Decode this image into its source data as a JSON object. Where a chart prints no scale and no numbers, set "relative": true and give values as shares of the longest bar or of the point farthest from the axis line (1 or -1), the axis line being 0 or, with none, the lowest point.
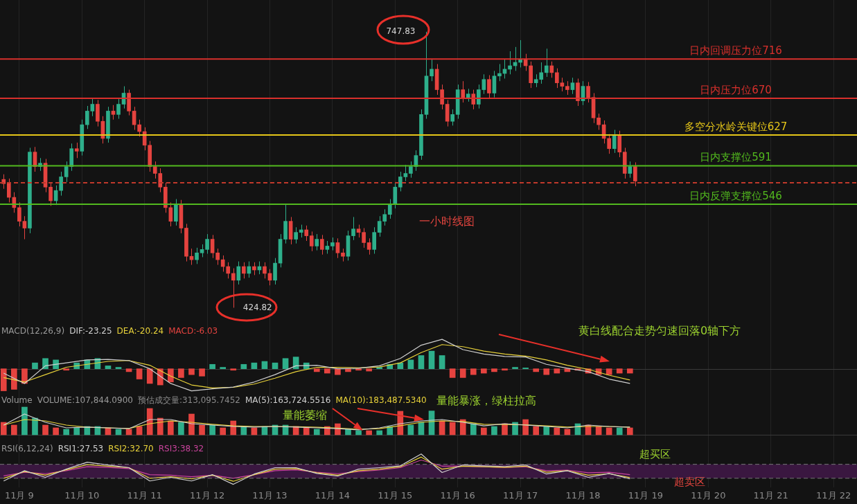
{
  "chart_data": [
    {
      "type": "candlestick",
      "xlim": [
        "--11-08T16:36",
        "--11-22T09:00"
      ],
      "xticks": [
        {
          "value": "--11-09",
          "label": "11月 9"
        },
        {
          "value": "--11-10",
          "label": "11月 10"
        },
        {
          "value": "--11-11",
          "label": "11月 11"
        },
        {
          "value": "--11-12",
          "label": "11月 12"
        },
        {
          "value": "--11-13",
          "label": "11月 13"
        },
        {
          "value": "--11-14",
          "label": "11月 14"
        },
        {
          "value": "--11-15",
          "label": "11月 15"
        },
        {
          "value": "--11-16",
          "label": "11月 16"
        },
        {
          "value": "--11-17",
          "label": "11月 17"
        },
        {
          "value": "--11-18",
          "label": "11月 18"
        },
        {
          "value": "--11-19",
          "label": "11月 19"
        },
        {
          "value": "--11-20",
          "label": "11月 20"
        },
        {
          "value": "--11-21",
          "label": "11月 21"
        },
        {
          "value": "--11-22",
          "label": "11月 22"
        }
      ],
      "tick_labels": false,
      "grid": "x",
      "x": [
        "--11-08T18:00",
        "--11-08T20:00",
        "--11-08T22:00",
        "--11-09T00:00",
        "--11-09T02:00",
        "--11-09T04:00",
        "--11-09T06:00",
        "--11-09T08:00",
        "--11-09T10:00",
        "--11-09T12:00",
        "--11-09T14:00",
        "--11-09T16:00",
        "--11-09T18:00",
        "--11-09T20:00",
        "--11-09T22:00",
        "--11-10T00:00",
        "--11-10T02:00",
        "--11-10T04:00",
        "--11-10T06:00",
        "--11-10T08:00",
        "--11-10T10:00",
        "--11-10T12:00",
        "--11-10T14:00",
        "--11-10T16:00",
        "--11-10T18:00",
        "--11-10T20:00",
        "--11-10T22:00",
        "--11-11T00:00",
        "--11-11T02:00",
        "--11-11T04:00",
        "--11-11T06:00",
        "--11-11T08:00",
        "--11-11T10:00",
        "--11-11T12:00",
        "--11-11T14:00",
        "--11-11T16:00",
        "--11-11T18:00",
        "--11-11T20:00",
        "--11-11T22:00",
        "--11-12T00:00",
        "--11-12T02:00",
        "--11-12T04:00",
        "--11-12T06:00",
        "--11-12T08:00",
        "--11-12T10:00",
        "--11-12T12:00",
        "--11-12T14:00",
        "--11-12T16:00",
        "--11-12T18:00",
        "--11-12T20:00",
        "--11-12T22:00",
        "--11-13T00:00",
        "--11-13T02:00",
        "--11-13T04:00",
        "--11-13T06:00",
        "--11-13T08:00",
        "--11-13T10:00",
        "--11-13T12:00",
        "--11-13T14:00",
        "--11-13T16:00",
        "--11-13T18:00",
        "--11-13T20:00",
        "--11-13T22:00",
        "--11-14T00:00",
        "--11-14T02:00",
        "--11-14T04:00",
        "--11-14T06:00",
        "--11-14T08:00",
        "--11-14T10:00",
        "--11-14T12:00",
        "--11-14T14:00",
        "--11-14T16:00",
        "--11-14T18:00",
        "--11-14T20:00",
        "--11-14T22:00",
        "--11-15T00:00",
        "--11-15T02:00",
        "--11-15T04:00",
        "--11-15T06:00",
        "--11-15T08:00",
        "--11-15T10:00",
        "--11-15T12:00",
        "--11-15T14:00",
        "--11-15T16:00",
        "--11-15T18:00",
        "--11-15T20:00",
        "--11-15T22:00",
        "--11-16T00:00",
        "--11-16T02:00",
        "--11-16T04:00",
        "--11-16T06:00",
        "--11-16T08:00",
        "--11-16T10:00",
        "--11-16T12:00",
        "--11-16T14:00",
        "--11-16T16:00",
        "--11-16T18:00",
        "--11-16T20:00",
        "--11-16T22:00",
        "--11-17T00:00",
        "--11-17T02:00",
        "--11-17T04:00",
        "--11-17T06:00",
        "--11-17T08:00",
        "--11-17T10:00",
        "--11-17T12:00",
        "--11-17T14:00",
        "--11-17T16:00",
        "--11-17T18:00",
        "--11-17T20:00",
        "--11-17T22:00",
        "--11-18T00:00",
        "--11-18T02:00",
        "--11-18T04:00",
        "--11-18T06:00",
        "--11-18T08:00",
        "--11-18T10:00",
        "--11-18T12:00",
        "--11-18T14:00",
        "--11-18T16:00",
        "--11-18T18:00",
        "--11-18T20:00"
      ],
      "ohlc": [
        [
          575,
          581,
          564,
          570
        ],
        [
          570,
          576,
          548,
          554
        ],
        [
          554,
          560,
          536,
          542
        ],
        [
          542,
          548,
          520,
          526
        ],
        [
          526,
          532,
          505,
          518
        ],
        [
          518,
          612,
          512,
          607
        ],
        [
          607,
          613,
          584,
          590
        ],
        [
          590,
          600,
          585,
          594
        ],
        [
          594,
          599,
          560,
          566
        ],
        [
          566,
          571,
          544,
          550
        ],
        [
          550,
          568,
          545,
          562
        ],
        [
          562,
          584,
          556,
          578
        ],
        [
          578,
          596,
          572,
          590
        ],
        [
          590,
          617,
          585,
          611
        ],
        [
          611,
          618,
          600,
          608
        ],
        [
          608,
          645,
          603,
          639
        ],
        [
          639,
          661,
          634,
          655
        ],
        [
          655,
          670,
          649,
          663
        ],
        [
          663,
          668,
          637,
          643
        ],
        [
          643,
          649,
          617,
          623
        ],
        [
          623,
          660,
          618,
          655
        ],
        [
          655,
          662,
          645,
          651
        ],
        [
          651,
          669,
          646,
          663
        ],
        [
          663,
          684,
          658,
          676
        ],
        [
          676,
          680,
          650,
          655
        ],
        [
          655,
          660,
          633,
          639
        ],
        [
          639,
          645,
          625,
          631
        ],
        [
          631,
          636,
          609,
          615
        ],
        [
          615,
          620,
          584,
          590
        ],
        [
          590,
          596,
          576,
          582
        ],
        [
          582,
          588,
          560,
          566
        ],
        [
          566,
          571,
          536,
          542
        ],
        [
          542,
          548,
          520,
          526
        ],
        [
          526,
          552,
          521,
          546
        ],
        [
          546,
          551,
          512,
          518
        ],
        [
          518,
          523,
          479,
          485
        ],
        [
          485,
          494,
          475,
          481
        ],
        [
          481,
          495,
          476,
          489
        ],
        [
          489,
          499,
          484,
          493
        ],
        [
          493,
          511,
          488,
          505
        ],
        [
          505,
          510,
          483,
          489
        ],
        [
          489,
          494,
          475,
          481
        ],
        [
          481,
          486,
          467,
          473
        ],
        [
          473,
          478,
          459,
          465
        ],
        [
          465,
          471,
          424.82,
          457
        ],
        [
          457,
          479,
          452,
          473
        ],
        [
          473,
          478,
          459,
          465
        ],
        [
          465,
          479,
          460,
          473
        ],
        [
          473,
          478,
          463,
          469
        ],
        [
          469,
          479,
          464,
          473
        ],
        [
          473,
          478,
          459,
          465
        ],
        [
          465,
          470,
          451,
          457
        ],
        [
          457,
          483,
          452,
          477
        ],
        [
          477,
          511,
          472,
          505
        ],
        [
          505,
          546,
          500,
          526
        ],
        [
          526,
          531,
          499,
          505
        ],
        [
          505,
          519,
          500,
          513
        ],
        [
          513,
          522,
          507,
          516
        ],
        [
          516,
          521,
          503,
          509
        ],
        [
          509,
          514,
          491,
          497
        ],
        [
          497,
          511,
          492,
          505
        ],
        [
          505,
          510,
          487,
          493
        ],
        [
          493,
          503,
          488,
          497
        ],
        [
          497,
          507,
          492,
          501
        ],
        [
          501,
          506,
          483,
          489
        ],
        [
          489,
          494,
          479,
          485
        ],
        [
          485,
          515,
          480,
          509
        ],
        [
          509,
          531,
          504,
          517
        ],
        [
          517,
          522,
          507,
          513
        ],
        [
          513,
          518,
          495,
          501
        ],
        [
          501,
          506,
          487,
          493
        ],
        [
          493,
          519,
          488,
          513
        ],
        [
          513,
          532,
          508,
          526
        ],
        [
          526,
          540,
          521,
          534
        ],
        [
          534,
          552,
          529,
          546
        ],
        [
          546,
          572,
          541,
          566
        ],
        [
          566,
          584,
          561,
          578
        ],
        [
          578,
          592,
          573,
          582
        ],
        [
          582,
          596,
          577,
          590
        ],
        [
          590,
          609,
          585,
          603
        ],
        [
          603,
          657,
          598,
          651
        ],
        [
          651,
          747.83,
          646,
          696
        ],
        [
          696,
          716,
          690,
          704
        ],
        [
          704,
          710,
          674,
          680
        ],
        [
          680,
          686,
          657,
          663
        ],
        [
          663,
          668,
          637,
          643
        ],
        [
          643,
          657,
          638,
          651
        ],
        [
          651,
          686,
          646,
          680
        ],
        [
          680,
          690,
          665,
          671
        ],
        [
          671,
          681,
          666,
          675
        ],
        [
          675,
          680,
          657,
          663
        ],
        [
          663,
          686,
          658,
          680
        ],
        [
          680,
          698,
          675,
          692
        ],
        [
          692,
          697,
          670,
          676
        ],
        [
          676,
          702,
          671,
          696
        ],
        [
          696,
          710,
          690,
          699
        ],
        [
          699,
          716,
          693,
          704
        ],
        [
          704,
          725,
          698,
          708
        ],
        [
          708,
          730,
          702,
          712
        ],
        [
          712,
          738,
          706,
          716
        ],
        [
          716,
          722,
          702,
          708
        ],
        [
          708,
          713,
          682,
          688
        ],
        [
          688,
          698,
          683,
          692
        ],
        [
          692,
          712,
          687,
          700
        ],
        [
          700,
          728,
          695,
          708
        ],
        [
          708,
          713,
          694,
          700
        ],
        [
          700,
          705,
          682,
          688
        ],
        [
          688,
          694,
          678,
          684
        ],
        [
          684,
          690,
          674,
          680
        ],
        [
          680,
          694,
          675,
          688
        ],
        [
          688,
          693,
          661,
          667
        ],
        [
          667,
          690,
          662,
          684
        ],
        [
          684,
          689,
          665,
          671
        ],
        [
          671,
          676,
          641,
          647
        ],
        [
          647,
          652,
          633,
          639
        ],
        [
          639,
          644,
          617,
          623
        ],
        [
          623,
          628,
          605,
          611
        ],
        [
          611,
          633,
          606,
          627
        ],
        [
          627,
          632,
          601,
          607
        ],
        [
          607,
          612,
          576,
          582
        ],
        [
          582,
          596,
          577,
          590
        ],
        [
          590,
          595,
          567,
          573
        ]
      ],
      "ref_lines": [
        {
          "axis": "y",
          "value": 716,
          "label": "日内回调压力位716",
          "color": "#d9302c"
        },
        {
          "axis": "y",
          "value": 670,
          "label": "日内压力位670",
          "color": "#d9302c"
        },
        {
          "axis": "y",
          "value": 627,
          "label": "多空分水岭关键位627",
          "color": "#e6c619"
        },
        {
          "axis": "y",
          "value": 591,
          "label": "日内支撑位591",
          "color": "#52b91e"
        },
        {
          "axis": "y",
          "value": 546,
          "label": "日内反弹支撑位546",
          "color": "#52b91e"
        },
        {
          "axis": "y",
          "value": 571,
          "color": "#c0392b",
          "line_style": "dashed"
        }
      ],
      "annotations": [
        {
          "text": "747.83",
          "x": "--11-15T12:00",
          "y": 747.83
        },
        {
          "text": "424.82",
          "x": "--11-12T10:00",
          "y": 424.82
        },
        "一小时线图"
      ]
    },
    {
      "type": "bar",
      "title": "MACD(12,26,9)",
      "relative": true,
      "legend": "top left",
      "xlim": [
        "--11-08T16:36",
        "--11-22T09:00"
      ],
      "xticks": [
        {
          "value": "--11-09",
          "label": "11月 9"
        },
        {
          "value": "--11-10",
          "label": "11月 10"
        },
        {
          "value": "--11-11",
          "label": "11月 11"
        },
        {
          "value": "--11-12",
          "label": "11月 12"
        },
        {
          "value": "--11-13",
          "label": "11月 13"
        },
        {
          "value": "--11-14",
          "label": "11月 14"
        },
        {
          "value": "--11-15",
          "label": "11月 15"
        },
        {
          "value": "--11-16",
          "label": "11月 16"
        },
        {
          "value": "--11-17",
          "label": "11月 17"
        },
        {
          "value": "--11-18",
          "label": "11月 18"
        },
        {
          "value": "--11-19",
          "label": "11月 19"
        },
        {
          "value": "--11-20",
          "label": "11月 20"
        },
        {
          "value": "--11-21",
          "label": "11月 21"
        },
        {
          "value": "--11-22",
          "label": "11月 22"
        }
      ],
      "tick_labels": false,
      "grid": "x",
      "x": [
        "--11-08T18:00",
        "--11-08T22:00",
        "--11-09T02:00",
        "--11-09T06:00",
        "--11-09T10:00",
        "--11-09T14:00",
        "--11-09T18:00",
        "--11-09T22:00",
        "--11-10T02:00",
        "--11-10T06:00",
        "--11-10T10:00",
        "--11-10T14:00",
        "--11-10T18:00",
        "--11-10T22:00",
        "--11-11T02:00",
        "--11-11T06:00",
        "--11-11T10:00",
        "--11-11T14:00",
        "--11-11T18:00",
        "--11-11T22:00",
        "--11-12T02:00",
        "--11-12T06:00",
        "--11-12T10:00",
        "--11-12T14:00",
        "--11-12T18:00",
        "--11-12T22:00",
        "--11-13T02:00",
        "--11-13T06:00",
        "--11-13T10:00",
        "--11-13T14:00",
        "--11-13T18:00",
        "--11-13T22:00",
        "--11-14T02:00",
        "--11-14T06:00",
        "--11-14T10:00",
        "--11-14T14:00",
        "--11-14T18:00",
        "--11-14T22:00",
        "--11-15T02:00",
        "--11-15T06:00",
        "--11-15T10:00",
        "--11-15T14:00",
        "--11-15T18:00",
        "--11-15T22:00",
        "--11-16T02:00",
        "--11-16T06:00",
        "--11-16T10:00",
        "--11-16T14:00",
        "--11-16T18:00",
        "--11-16T22:00",
        "--11-17T02:00",
        "--11-17T06:00",
        "--11-17T10:00",
        "--11-17T14:00",
        "--11-17T18:00",
        "--11-17T22:00",
        "--11-18T02:00",
        "--11-18T06:00",
        "--11-18T10:00",
        "--11-18T14:00",
        "--11-18T18:00"
      ],
      "series": [
        {
          "name": "DIF:-23.25",
          "type": "line",
          "color": "#d0d0d0",
          "x": [
            "--11-08T18:00",
            "--11-09T02:00",
            "--11-09T10:00",
            "--11-09T18:00",
            "--11-10T02:00",
            "--11-10T10:00",
            "--11-10T18:00",
            "--11-11T02:00",
            "--11-11T10:00",
            "--11-11T18:00",
            "--11-12T02:00",
            "--11-12T10:00",
            "--11-12T18:00",
            "--11-13T02:00",
            "--11-13T10:00",
            "--11-13T18:00",
            "--11-14T02:00",
            "--11-14T10:00",
            "--11-14T18:00",
            "--11-15T02:00",
            "--11-15T10:00",
            "--11-15T18:00",
            "--11-16T02:00",
            "--11-16T10:00",
            "--11-16T18:00",
            "--11-17T02:00",
            "--11-17T10:00",
            "--11-17T18:00",
            "--11-18T02:00",
            "--11-18T10:00",
            "--11-18T18:00"
          ],
          "values": [
            -0.15,
            -0.5,
            0.1,
            0.2,
            0.3,
            0.32,
            0.28,
            0,
            -0.5,
            -0.75,
            -0.68,
            -0.62,
            -0.45,
            -0.2,
            0.1,
            0.12,
            0,
            0.02,
            0.1,
            0.35,
            0.8,
            1.0,
            0.65,
            0.5,
            0.42,
            0.4,
            0.15,
            0.02,
            -0.1,
            -0.35,
            -0.5
          ]
        },
        {
          "name": "DEA:-20.24",
          "type": "line",
          "color": "#e8d23a",
          "x": [
            "--11-08T18:00",
            "--11-09T02:00",
            "--11-09T10:00",
            "--11-09T18:00",
            "--11-10T02:00",
            "--11-10T10:00",
            "--11-10T18:00",
            "--11-11T02:00",
            "--11-11T10:00",
            "--11-11T18:00",
            "--11-12T02:00",
            "--11-12T10:00",
            "--11-12T18:00",
            "--11-13T02:00",
            "--11-13T10:00",
            "--11-13T18:00",
            "--11-14T02:00",
            "--11-14T10:00",
            "--11-14T18:00",
            "--11-15T02:00",
            "--11-15T10:00",
            "--11-15T18:00",
            "--11-16T02:00",
            "--11-16T10:00",
            "--11-16T18:00",
            "--11-17T02:00",
            "--11-17T10:00",
            "--11-17T18:00",
            "--11-18T02:00",
            "--11-18T10:00",
            "--11-18T18:00"
          ],
          "values": [
            -0.3,
            -0.45,
            -0.2,
            0.05,
            0.15,
            0.25,
            0.28,
            0.12,
            -0.25,
            -0.55,
            -0.65,
            -0.63,
            -0.52,
            -0.32,
            -0.1,
            0.05,
            0.05,
            0.03,
            0.06,
            0.2,
            0.55,
            0.82,
            0.75,
            0.6,
            0.5,
            0.43,
            0.3,
            0.12,
            -0.02,
            -0.22,
            -0.38
          ]
        },
        {
          "name": "MACD:-6.03",
          "type": "bar",
          "values": [
            -0.75,
            -0.7,
            -0.5,
            0.2,
            0.35,
            0.3,
            -0.05,
            0.2,
            0.3,
            0.35,
            0.1,
            0.05,
            -0.1,
            -0.35,
            -0.5,
            -0.55,
            -0.45,
            -0.3,
            -0.2,
            -0.25,
            0.15,
            0.05,
            -0.05,
            0.15,
            0.2,
            0.25,
            0.2,
            0.35,
            0.4,
            0.2,
            -0.1,
            -0.15,
            -0.2,
            -0.1,
            -0.05,
            -0.08,
            0.05,
            0.15,
            0.2,
            0.3,
            0.45,
            0.6,
            0.45,
            -0.3,
            -0.3,
            -0.2,
            -0.15,
            -0.1,
            -0.05,
            0.05,
            0.03,
            -0.1,
            -0.2,
            -0.15,
            -0.1,
            -0.05,
            -0.15,
            -0.2,
            -0.2,
            -0.15,
            -0.15
          ],
          "colors": [
            "#e5433f",
            "#e5433f",
            "#e5433f",
            "#2eaf8b",
            "#2eaf8b",
            "#2eaf8b",
            "#e5433f",
            "#2eaf8b",
            "#2eaf8b",
            "#2eaf8b",
            "#2eaf8b",
            "#2eaf8b",
            "#e5433f",
            "#e5433f",
            "#e5433f",
            "#e5433f",
            "#e5433f",
            "#e5433f",
            "#e5433f",
            "#e5433f",
            "#2eaf8b",
            "#2eaf8b",
            "#e5433f",
            "#2eaf8b",
            "#2eaf8b",
            "#2eaf8b",
            "#2eaf8b",
            "#2eaf8b",
            "#2eaf8b",
            "#2eaf8b",
            "#e5433f",
            "#e5433f",
            "#e5433f",
            "#e5433f",
            "#e5433f",
            "#e5433f",
            "#2eaf8b",
            "#2eaf8b",
            "#2eaf8b",
            "#2eaf8b",
            "#2eaf8b",
            "#2eaf8b",
            "#2eaf8b",
            "#e5433f",
            "#e5433f",
            "#e5433f",
            "#e5433f",
            "#e5433f",
            "#e5433f",
            "#2eaf8b",
            "#2eaf8b",
            "#e5433f",
            "#e5433f",
            "#e5433f",
            "#e5433f",
            "#e5433f",
            "#e5433f",
            "#e5433f",
            "#e5433f",
            "#e5433f",
            "#e5433f"
          ]
        }
      ],
      "annotations": [
        "黄白线配合走势匀速回落0轴下方"
      ]
    },
    {
      "type": "bar",
      "title": "Volume",
      "relative": true,
      "legend": "top left",
      "xlim": [
        "--11-08T16:36",
        "--11-22T09:00"
      ],
      "xticks": [
        {
          "value": "--11-09",
          "label": "11月 9"
        },
        {
          "value": "--11-10",
          "label": "11月 10"
        },
        {
          "value": "--11-11",
          "label": "11月 11"
        },
        {
          "value": "--11-12",
          "label": "11月 12"
        },
        {
          "value": "--11-13",
          "label": "11月 13"
        },
        {
          "value": "--11-14",
          "label": "11月 14"
        },
        {
          "value": "--11-15",
          "label": "11月 15"
        },
        {
          "value": "--11-16",
          "label": "11月 16"
        },
        {
          "value": "--11-17",
          "label": "11月 17"
        },
        {
          "value": "--11-18",
          "label": "11月 18"
        },
        {
          "value": "--11-19",
          "label": "11月 19"
        },
        {
          "value": "--11-20",
          "label": "11月 20"
        },
        {
          "value": "--11-21",
          "label": "11月 21"
        },
        {
          "value": "--11-22",
          "label": "11月 22"
        }
      ],
      "tick_labels": false,
      "grid": "x",
      "x": [
        "--11-08T18:00",
        "--11-08T22:00",
        "--11-09T02:00",
        "--11-09T06:00",
        "--11-09T10:00",
        "--11-09T14:00",
        "--11-09T18:00",
        "--11-09T22:00",
        "--11-10T02:00",
        "--11-10T06:00",
        "--11-10T10:00",
        "--11-10T14:00",
        "--11-10T18:00",
        "--11-10T22:00",
        "--11-11T02:00",
        "--11-11T06:00",
        "--11-11T10:00",
        "--11-11T14:00",
        "--11-11T18:00",
        "--11-11T22:00",
        "--11-12T02:00",
        "--11-12T06:00",
        "--11-12T10:00",
        "--11-12T14:00",
        "--11-12T18:00",
        "--11-12T22:00",
        "--11-13T02:00",
        "--11-13T06:00",
        "--11-13T10:00",
        "--11-13T14:00",
        "--11-13T18:00",
        "--11-13T22:00",
        "--11-14T02:00",
        "--11-14T06:00",
        "--11-14T10:00",
        "--11-14T14:00",
        "--11-14T18:00",
        "--11-14T22:00",
        "--11-15T02:00",
        "--11-15T06:00",
        "--11-15T10:00",
        "--11-15T14:00",
        "--11-15T18:00",
        "--11-15T22:00",
        "--11-16T02:00",
        "--11-16T06:00",
        "--11-16T10:00",
        "--11-16T14:00",
        "--11-16T18:00",
        "--11-16T22:00",
        "--11-17T02:00",
        "--11-17T06:00",
        "--11-17T10:00",
        "--11-17T14:00",
        "--11-17T18:00",
        "--11-17T22:00",
        "--11-18T02:00",
        "--11-18T06:00",
        "--11-18T10:00",
        "--11-18T14:00",
        "--11-18T18:00"
      ],
      "series": [
        {
          "name": "VOLUME:107,844.0900",
          "type": "bar",
          "values": [
            0.45,
            0.35,
            1.0,
            0.6,
            0.35,
            0.25,
            0.2,
            0.25,
            0.3,
            0.3,
            0.25,
            0.2,
            0.2,
            0.3,
            0.95,
            0.6,
            0.5,
            0.45,
            0.75,
            0.35,
            0.35,
            0.25,
            0.5,
            0.3,
            0.25,
            0.3,
            0.35,
            0.35,
            0.3,
            0.25,
            0.2,
            0.3,
            0.4,
            0.2,
            0.15,
            0.15,
            0.15,
            0.3,
            0.85,
            0.35,
            0.45,
            0.86,
            0.5,
            0.45,
            0.55,
            0.4,
            0.25,
            0.3,
            0.4,
            0.45,
            0.55,
            0.3,
            0.3,
            0.25,
            0.2,
            0.4,
            0.35,
            0.3,
            0.25,
            0.25,
            0.25
          ],
          "colors": [
            "#e5433f",
            "#e5433f",
            "#2eaf8b",
            "#2eaf8b",
            "#e5433f",
            "#e5433f",
            "#2eaf8b",
            "#2eaf8b",
            "#2eaf8b",
            "#2eaf8b",
            "#e5433f",
            "#2eaf8b",
            "#e5433f",
            "#e5433f",
            "#e5433f",
            "#e5433f",
            "#e5433f",
            "#2eaf8b",
            "#e5433f",
            "#e5433f",
            "#2eaf8b",
            "#e5433f",
            "#e5433f",
            "#2eaf8b",
            "#e5433f",
            "#2eaf8b",
            "#2eaf8b",
            "#2eaf8b",
            "#e5433f",
            "#e5433f",
            "#2eaf8b",
            "#e5433f",
            "#e5433f",
            "#2eaf8b",
            "#2eaf8b",
            "#e5433f",
            "#2eaf8b",
            "#2eaf8b",
            "#e5433f",
            "#2eaf8b",
            "#2eaf8b",
            "#2eaf8b",
            "#e5433f",
            "#e5433f",
            "#e5433f",
            "#2eaf8b",
            "#e5433f",
            "#2eaf8b",
            "#e5433f",
            "#2eaf8b",
            "#e5433f",
            "#e5433f",
            "#2eaf8b",
            "#e5433f",
            "#e5433f",
            "#2eaf8b",
            "#e5433f",
            "#e5433f",
            "#e5433f",
            "#2eaf8b",
            "#e5433f"
          ]
        },
        {
          "name": "MA(5):163,724.5516",
          "type": "line",
          "color": "#d0d0d0",
          "x": [
            "--11-08T18:00",
            "--11-09T02:00",
            "--11-09T10:00",
            "--11-09T18:00",
            "--11-10T02:00",
            "--11-10T10:00",
            "--11-10T18:00",
            "--11-11T02:00",
            "--11-11T10:00",
            "--11-11T18:00",
            "--11-12T02:00",
            "--11-12T10:00",
            "--11-12T18:00",
            "--11-13T02:00",
            "--11-13T10:00",
            "--11-13T18:00",
            "--11-14T02:00",
            "--11-14T10:00",
            "--11-14T18:00",
            "--11-15T02:00",
            "--11-15T10:00",
            "--11-15T18:00",
            "--11-16T02:00",
            "--11-16T10:00",
            "--11-16T18:00",
            "--11-17T02:00",
            "--11-17T10:00",
            "--11-17T18:00",
            "--11-18T02:00",
            "--11-18T10:00",
            "--11-18T18:00"
          ],
          "values": [
            0.35,
            0.75,
            0.45,
            0.25,
            0.28,
            0.25,
            0.22,
            0.55,
            0.55,
            0.4,
            0.35,
            0.3,
            0.28,
            0.3,
            0.28,
            0.25,
            0.22,
            0.18,
            0.25,
            0.4,
            0.5,
            0.55,
            0.45,
            0.32,
            0.4,
            0.35,
            0.3,
            0.25,
            0.35,
            0.3,
            0.27
          ]
        },
        {
          "name": "MA(10):183,487.5340",
          "type": "line",
          "color": "#e8d23a",
          "x": [
            "--11-08T18:00",
            "--11-09T02:00",
            "--11-09T10:00",
            "--11-09T18:00",
            "--11-10T02:00",
            "--11-10T10:00",
            "--11-10T18:00",
            "--11-11T02:00",
            "--11-11T10:00",
            "--11-11T18:00",
            "--11-12T02:00",
            "--11-12T10:00",
            "--11-12T18:00",
            "--11-13T02:00",
            "--11-13T10:00",
            "--11-13T18:00",
            "--11-14T02:00",
            "--11-14T10:00",
            "--11-14T18:00",
            "--11-15T02:00",
            "--11-15T10:00",
            "--11-15T18:00",
            "--11-16T02:00",
            "--11-16T10:00",
            "--11-16T18:00",
            "--11-17T02:00",
            "--11-17T10:00",
            "--11-17T18:00",
            "--11-18T02:00",
            "--11-18T10:00",
            "--11-18T18:00"
          ],
          "values": [
            0.35,
            0.55,
            0.5,
            0.35,
            0.27,
            0.25,
            0.23,
            0.4,
            0.5,
            0.45,
            0.38,
            0.32,
            0.3,
            0.3,
            0.29,
            0.27,
            0.24,
            0.2,
            0.22,
            0.33,
            0.45,
            0.5,
            0.48,
            0.38,
            0.37,
            0.36,
            0.32,
            0.28,
            0.3,
            0.3,
            0.28
          ]
        }
      ],
      "annotations": [
        "预估成交量:313,095.7452",
        "量能萎缩",
        "量能暴涨，绿柱拉高"
      ]
    },
    {
      "type": "line",
      "title": "RSI(6,12,24)",
      "relative": true,
      "legend": "top left",
      "xlim": [
        "--11-08T16:36",
        "--11-22T09:00"
      ],
      "xticks": [
        {
          "value": "--11-09",
          "label": "11月 9"
        },
        {
          "value": "--11-10",
          "label": "11月 10"
        },
        {
          "value": "--11-11",
          "label": "11月 11"
        },
        {
          "value": "--11-12",
          "label": "11月 12"
        },
        {
          "value": "--11-13",
          "label": "11月 13"
        },
        {
          "value": "--11-14",
          "label": "11月 14"
        },
        {
          "value": "--11-15",
          "label": "11月 15"
        },
        {
          "value": "--11-16",
          "label": "11月 16"
        },
        {
          "value": "--11-17",
          "label": "11月 17"
        },
        {
          "value": "--11-18",
          "label": "11月 18"
        },
        {
          "value": "--11-19",
          "label": "11月 19"
        },
        {
          "value": "--11-20",
          "label": "11月 20"
        },
        {
          "value": "--11-21",
          "label": "11月 21"
        },
        {
          "value": "--11-22",
          "label": "11月 22"
        }
      ],
      "grid": "x",
      "x": [
        "--11-08T18:00",
        "--11-09T02:00",
        "--11-09T10:00",
        "--11-09T18:00",
        "--11-10T02:00",
        "--11-10T10:00",
        "--11-10T18:00",
        "--11-11T02:00",
        "--11-11T10:00",
        "--11-11T18:00",
        "--11-12T02:00",
        "--11-12T10:00",
        "--11-12T18:00",
        "--11-13T02:00",
        "--11-13T10:00",
        "--11-13T18:00",
        "--11-14T02:00",
        "--11-14T10:00",
        "--11-14T18:00",
        "--11-15T02:00",
        "--11-15T10:00",
        "--11-15T18:00",
        "--11-16T02:00",
        "--11-16T10:00",
        "--11-16T18:00",
        "--11-17T02:00",
        "--11-17T10:00",
        "--11-17T18:00",
        "--11-18T02:00",
        "--11-18T10:00",
        "--11-18T18:00"
      ],
      "series": [
        {
          "name": "RSI1:27.53",
          "color": "#d0d0d0",
          "values": [
            0.11,
            0.45,
            0.23,
            0.5,
            0.73,
            0.64,
            0.55,
            0.11,
            0.23,
            0.11,
            0.32,
            0,
            0.34,
            0.55,
            0.55,
            0.36,
            0.27,
            0.5,
            0.55,
            0.61,
            1.0,
            0.39,
            0.64,
            0.61,
            0.59,
            0.64,
            0.34,
            0.45,
            0.23,
            0.36,
            0.18
          ]
        },
        {
          "name": "RSI2:32.70",
          "color": "#e8d23a",
          "values": [
            0.2,
            0.42,
            0.3,
            0.48,
            0.65,
            0.6,
            0.55,
            0.2,
            0.25,
            0.18,
            0.3,
            0.1,
            0.32,
            0.5,
            0.52,
            0.38,
            0.3,
            0.45,
            0.5,
            0.58,
            0.9,
            0.5,
            0.6,
            0.58,
            0.56,
            0.6,
            0.4,
            0.45,
            0.3,
            0.35,
            0.22
          ]
        },
        {
          "name": "RSI3:38.32",
          "color": "#c9439c",
          "values": [
            0.28,
            0.4,
            0.35,
            0.45,
            0.58,
            0.56,
            0.52,
            0.32,
            0.3,
            0.25,
            0.3,
            0.2,
            0.32,
            0.45,
            0.48,
            0.4,
            0.35,
            0.42,
            0.47,
            0.55,
            0.8,
            0.6,
            0.6,
            0.58,
            0.56,
            0.58,
            0.45,
            0.47,
            0.38,
            0.4,
            0.32
          ]
        }
      ],
      "bands": [
        {
          "axis": "y",
          "from": 0.2,
          "to": 0.66,
          "color": "#3a1740"
        }
      ],
      "ref_lines": [
        {
          "axis": "y",
          "value": 0.66,
          "label": "超买区",
          "color": "#777777",
          "line_style": "dashed"
        },
        {
          "axis": "y",
          "value": 0.2,
          "label": "超卖区",
          "color": "#777777",
          "line_style": "dashed"
        }
      ]
    }
  ]
}
